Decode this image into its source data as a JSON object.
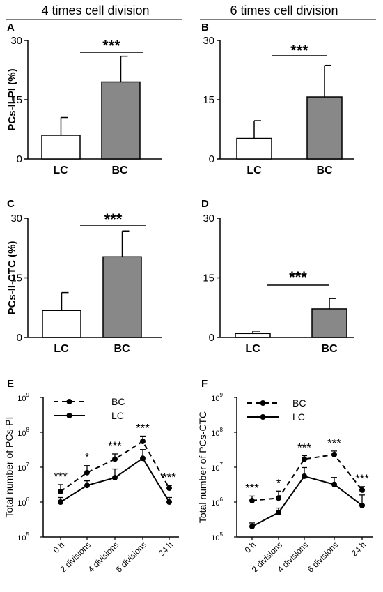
{
  "headers": [
    "4 times cell division",
    "6 times cell division"
  ],
  "chart_data": [
    {
      "panel": "A",
      "type": "bar",
      "categories": [
        "LC",
        "BC"
      ],
      "values": [
        6,
        19.5
      ],
      "errors": [
        4.5,
        6.5
      ],
      "colors": [
        "#ffffff",
        "#888888"
      ],
      "ylabel": "PCs-II-PI (%)",
      "yticks": [
        "0",
        "15",
        "30"
      ],
      "ylim": [
        0,
        30
      ],
      "significance": "***"
    },
    {
      "panel": "B",
      "type": "bar",
      "categories": [
        "LC",
        "BC"
      ],
      "values": [
        5.2,
        15.7
      ],
      "errors": [
        4.5,
        8
      ],
      "colors": [
        "#ffffff",
        "#888888"
      ],
      "ylabel": "",
      "yticks": [
        "0",
        "15",
        "30"
      ],
      "ylim": [
        0,
        30
      ],
      "significance": "***"
    },
    {
      "panel": "C",
      "type": "bar",
      "categories": [
        "LC",
        "BC"
      ],
      "values": [
        6.8,
        20.3
      ],
      "errors": [
        4.5,
        6.5
      ],
      "colors": [
        "#ffffff",
        "#888888"
      ],
      "ylabel": "PCs-II-CTC (%)",
      "yticks": [
        "0",
        "15",
        "30"
      ],
      "ylim": [
        0,
        30
      ],
      "significance": "***"
    },
    {
      "panel": "D",
      "type": "bar",
      "categories": [
        "LC",
        "BC"
      ],
      "values": [
        1,
        7.2
      ],
      "errors": [
        0.6,
        2.6
      ],
      "colors": [
        "#ffffff",
        "#888888"
      ],
      "ylabel": "",
      "yticks": [
        "0",
        "15",
        "30"
      ],
      "ylim": [
        0,
        30
      ],
      "significance": "***"
    },
    {
      "panel": "E",
      "type": "line",
      "scale": "log",
      "categories": [
        "0 h",
        "2 divisions",
        "4 divisions",
        "6 divisions",
        "24 h"
      ],
      "series": [
        {
          "name": "BC",
          "style": "dashed",
          "values": [
            2000000,
            7000000,
            17000000,
            55000000,
            2500000
          ],
          "errors_upper": [
            0.2,
            0.2,
            0.15,
            0.15,
            0.08
          ]
        },
        {
          "name": "LC",
          "style": "solid",
          "values": [
            1000000,
            3000000,
            5000000,
            18000000,
            1000000
          ],
          "errors_upper": [
            0.13,
            0.13,
            0.25,
            0.25,
            0.13
          ]
        }
      ],
      "ylabel": "Total number of PCs-PI",
      "ytick_bases": [
        "10",
        "10",
        "10",
        "10",
        "10"
      ],
      "ytick_exps": [
        "5",
        "6",
        "7",
        "8",
        "9"
      ],
      "ylim": [
        100000,
        1000000000
      ],
      "significance": [
        "***",
        "*",
        "***",
        "***",
        "***"
      ]
    },
    {
      "panel": "F",
      "type": "line",
      "scale": "log",
      "categories": [
        "0 h",
        "2 divisions",
        "4 divisions",
        "6 divisions",
        "24 h"
      ],
      "series": [
        {
          "name": "BC",
          "style": "dashed",
          "values": [
            1100000,
            1300000,
            17000000,
            23000000,
            2200000
          ],
          "errors_upper": [
            0.13,
            0.2,
            0.1,
            0.1,
            0.1
          ]
        },
        {
          "name": "LC",
          "style": "solid",
          "values": [
            200000,
            500000,
            5500000,
            3200000,
            800000
          ],
          "errors_upper": [
            0.1,
            0.13,
            0.25,
            0.2,
            0.3
          ]
        }
      ],
      "ylabel": "Total number of PCs-CTC",
      "ytick_bases": [
        "10",
        "10",
        "10",
        "10",
        "10"
      ],
      "ytick_exps": [
        "5",
        "6",
        "7",
        "8",
        "9"
      ],
      "ylim": [
        100000,
        1000000000
      ],
      "significance": [
        "***",
        "*",
        "***",
        "***",
        "***"
      ]
    }
  ]
}
